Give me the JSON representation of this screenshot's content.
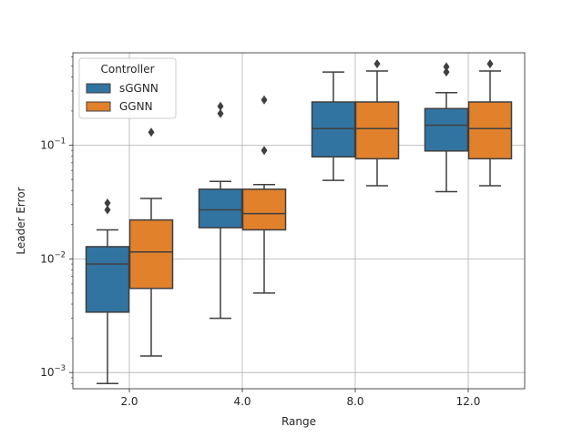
{
  "chart_data": {
    "type": "boxplot",
    "title": "",
    "xlabel": "Range",
    "ylabel": "Leader Error",
    "yscale": "log",
    "ylim": [
      0.00072,
      0.65
    ],
    "grid": true,
    "categories": [
      "2.0",
      "4.0",
      "8.0",
      "12.0"
    ],
    "y_ticks": [
      {
        "value": 0.001,
        "base": "10",
        "exp": "−3"
      },
      {
        "value": 0.01,
        "base": "10",
        "exp": "−2"
      },
      {
        "value": 0.1,
        "base": "10",
        "exp": "−1"
      }
    ],
    "legend": {
      "title": "Controller",
      "position": "top-left"
    },
    "series": [
      {
        "name": "sGGNN",
        "color": "#3274a1",
        "boxes": [
          {
            "whisker_low": 0.0008,
            "q1": 0.0034,
            "median": 0.009,
            "q3": 0.0128,
            "whisker_high": 0.018,
            "outliers": [
              0.027,
              0.031
            ]
          },
          {
            "whisker_low": 0.003,
            "q1": 0.0188,
            "median": 0.027,
            "q3": 0.041,
            "whisker_high": 0.048,
            "outliers": [
              0.19,
              0.22
            ]
          },
          {
            "whisker_low": 0.049,
            "q1": 0.079,
            "median": 0.14,
            "q3": 0.24,
            "whisker_high": 0.44,
            "outliers": []
          },
          {
            "whisker_low": 0.039,
            "q1": 0.089,
            "median": 0.15,
            "q3": 0.21,
            "whisker_high": 0.29,
            "outliers": [
              0.44,
              0.49
            ]
          }
        ]
      },
      {
        "name": "GGNN",
        "color": "#e1812c",
        "boxes": [
          {
            "whisker_low": 0.0014,
            "q1": 0.0055,
            "median": 0.0115,
            "q3": 0.022,
            "whisker_high": 0.034,
            "outliers": [
              0.13
            ]
          },
          {
            "whisker_low": 0.005,
            "q1": 0.018,
            "median": 0.025,
            "q3": 0.041,
            "whisker_high": 0.045,
            "outliers": [
              0.09,
              0.25
            ]
          },
          {
            "whisker_low": 0.044,
            "q1": 0.076,
            "median": 0.14,
            "q3": 0.24,
            "whisker_high": 0.45,
            "outliers": [
              0.52
            ]
          },
          {
            "whisker_low": 0.044,
            "q1": 0.076,
            "median": 0.14,
            "q3": 0.24,
            "whisker_high": 0.45,
            "outliers": [
              0.52
            ]
          }
        ]
      }
    ]
  }
}
